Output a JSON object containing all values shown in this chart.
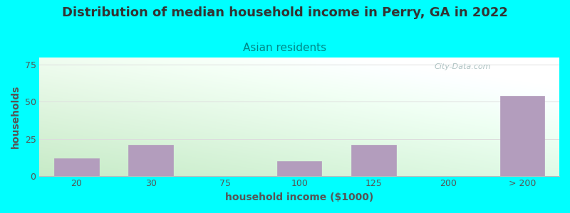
{
  "title": "Distribution of median household income in Perry, GA in 2022",
  "subtitle": "Asian residents",
  "xlabel": "household income ($1000)",
  "ylabel": "households",
  "background_color": "#00FFFF",
  "bar_color": "#b39dbd",
  "categories": [
    "20",
    "30",
    "75",
    "100",
    "125",
    "200",
    "> 200"
  ],
  "values": [
    12,
    21,
    0,
    10,
    21,
    0,
    54
  ],
  "bar_positions": [
    0,
    1,
    2,
    3,
    4,
    5,
    6
  ],
  "ylim": [
    0,
    80
  ],
  "yticks": [
    0,
    25,
    50,
    75
  ],
  "title_fontsize": 13,
  "subtitle_fontsize": 11,
  "axis_label_fontsize": 10,
  "tick_fontsize": 9,
  "watermark_text": "City-Data.com",
  "watermark_color": "#a0b8b8",
  "grid_color": "#dddddd",
  "title_color": "#333333",
  "subtitle_color": "#008888",
  "tick_color": "#555555",
  "label_color": "#555555"
}
